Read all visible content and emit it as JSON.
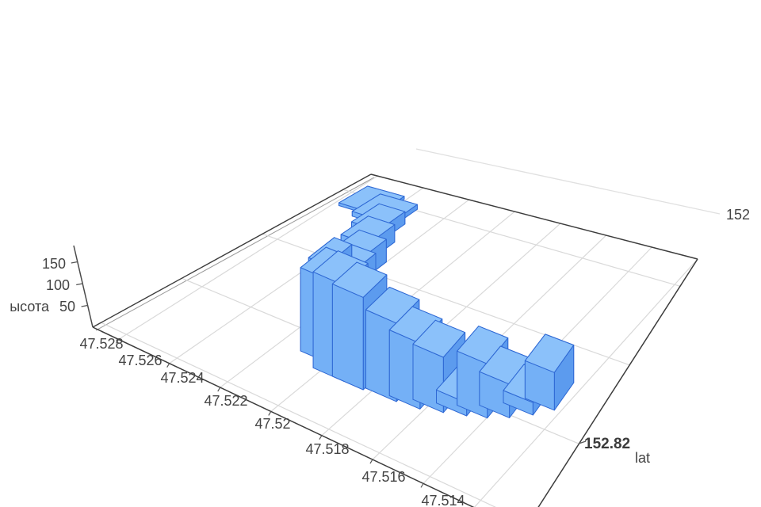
{
  "chart_data": {
    "type": "3d-bar",
    "title": "",
    "legend": null,
    "axes": {
      "x": {
        "label": "",
        "tick_labels": [
          "47.528",
          "47.526",
          "47.524",
          "47.522",
          "47.52",
          "47.518",
          "47.516",
          "47.514"
        ]
      },
      "y": {
        "label": "lat",
        "tick_labels": [
          "152.82"
        ],
        "edge_label": "152"
      },
      "z": {
        "label": "ысота",
        "tick_labels": [
          "50",
          "100",
          "150"
        ]
      }
    },
    "bars": [
      {
        "lat2": 47.5273,
        "lat": 152.8393,
        "height": 6
      },
      {
        "lat2": 47.5263,
        "lat": 152.8384,
        "height": 10
      },
      {
        "lat2": 47.5257,
        "lat": 152.8359,
        "height": 26
      },
      {
        "lat2": 47.5252,
        "lat": 152.8331,
        "height": 36
      },
      {
        "lat2": 47.5246,
        "lat": 152.8302,
        "height": 46
      },
      {
        "lat2": 47.5241,
        "lat": 152.8272,
        "height": 58
      },
      {
        "lat2": 47.5235,
        "lat": 152.8243,
        "height": 72
      },
      {
        "lat2": 47.5231,
        "lat": 152.8214,
        "height": 150
      },
      {
        "lat2": 47.5225,
        "lat": 152.8191,
        "height": 160
      },
      {
        "lat2": 47.5216,
        "lat": 152.8178,
        "height": 180
      },
      {
        "lat2": 47.5208,
        "lat": 152.8178,
        "height": 170
      },
      {
        "lat2": 47.5195,
        "lat": 152.8181,
        "height": 140
      },
      {
        "lat2": 47.5186,
        "lat": 152.8184,
        "height": 115
      },
      {
        "lat2": 47.5178,
        "lat": 152.8191,
        "height": 95
      },
      {
        "lat2": 47.517,
        "lat": 152.8198,
        "height": 22
      },
      {
        "lat2": 47.5163,
        "lat": 152.8205,
        "height": 90
      },
      {
        "lat2": 47.5156,
        "lat": 152.8215,
        "height": 55
      },
      {
        "lat2": 47.5149,
        "lat": 152.8228,
        "height": 20
      },
      {
        "lat2": 47.5143,
        "lat": 152.8242,
        "height": 60
      }
    ],
    "colors": {
      "bar_front": "#74b0f6",
      "bar_top": "#8bc1fa",
      "bar_right": "#5c9bee",
      "bar_left": "#68a5f3",
      "bar_back": "#6aa8f4",
      "bar_edge": "#2e68d4",
      "axis_text": "#444444",
      "pane_edge": "#3c3c3c",
      "grid_line": "#d9d9d9",
      "wall_top_line": "#e0e0e0",
      "background": "#ffffff"
    }
  }
}
